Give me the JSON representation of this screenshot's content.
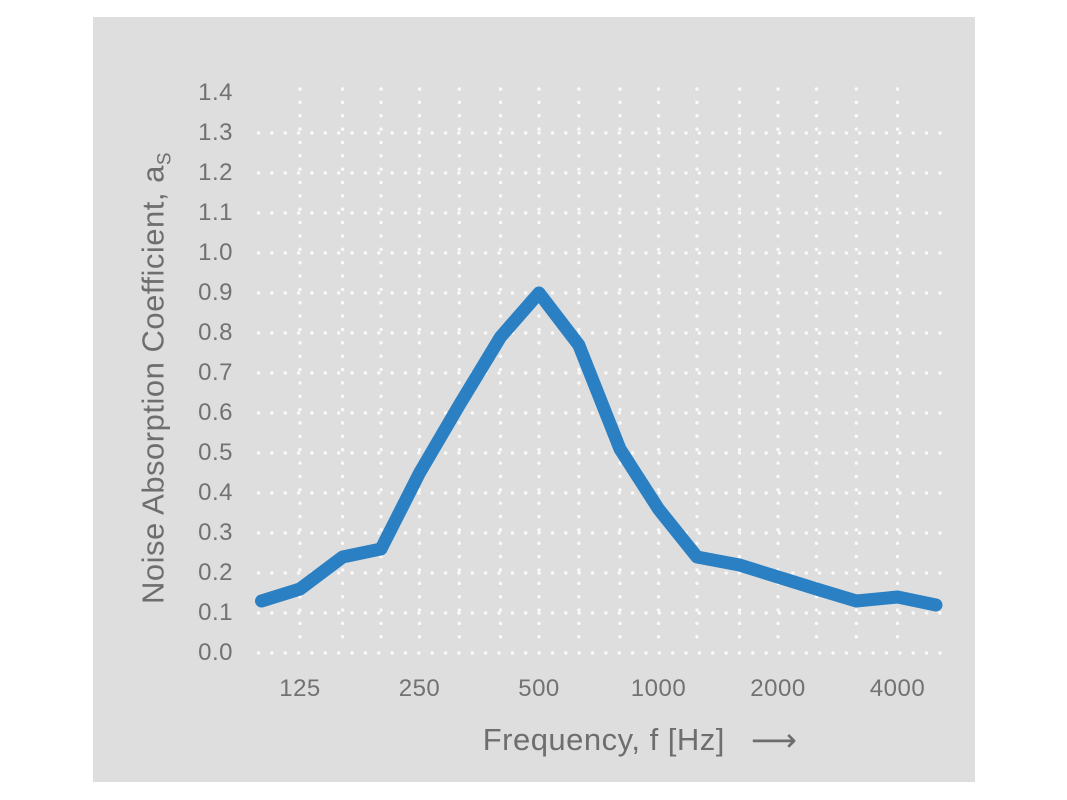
{
  "chart_data": {
    "type": "line",
    "title": "",
    "xlabel": "Frequency, f [Hz]",
    "arrow_glyph": "⟶",
    "ylabel_main": "Noise Absorption Coefficient, a",
    "ylabel_sub": "S",
    "x_scale": "log2",
    "xlim": [
      100,
      5000
    ],
    "ylim": [
      0,
      1.4
    ],
    "x_tick_labels": [
      "125",
      "250",
      "500",
      "1000",
      "2000",
      "4000"
    ],
    "x_tick_values": [
      125,
      250,
      500,
      1000,
      2000,
      4000
    ],
    "y_tick_labels": [
      "0.0",
      "0.1",
      "0.2",
      "0.3",
      "0.4",
      "0.5",
      "0.6",
      "0.7",
      "0.8",
      "0.9",
      "1.0",
      "1.1",
      "1.2",
      "1.3",
      "1.4"
    ],
    "y_tick_values": [
      0,
      0.1,
      0.2,
      0.3,
      0.4,
      0.5,
      0.6,
      0.7,
      0.8,
      0.9,
      1.0,
      1.1,
      1.2,
      1.3,
      1.4
    ],
    "grid": {
      "style": "dotted",
      "h_values": [
        0,
        0.1,
        0.2,
        0.3,
        0.4,
        0.5,
        0.6,
        0.7,
        0.8,
        0.9,
        1.0,
        1.1,
        1.2,
        1.3
      ],
      "v_freqs": [
        125,
        160,
        200,
        250,
        315,
        400,
        500,
        630,
        800,
        1000,
        1250,
        1600,
        2000,
        2500,
        3150,
        4000
      ]
    },
    "series": [
      {
        "name": "noise-absorption-coefficient",
        "x": [
          100,
          125,
          160,
          200,
          250,
          315,
          400,
          500,
          630,
          800,
          1000,
          1250,
          1600,
          2000,
          2500,
          3150,
          4000,
          5000
        ],
        "values": [
          0.13,
          0.16,
          0.24,
          0.26,
          0.45,
          0.62,
          0.79,
          0.9,
          0.77,
          0.51,
          0.36,
          0.24,
          0.22,
          0.19,
          0.16,
          0.13,
          0.14,
          0.12
        ]
      }
    ],
    "colors": {
      "line": "#2b80c3",
      "panel_bg": "#dfdede",
      "grid_dot": "#fafafa",
      "text": "#6e6e6e",
      "page_bg": "#ffffff"
    }
  }
}
